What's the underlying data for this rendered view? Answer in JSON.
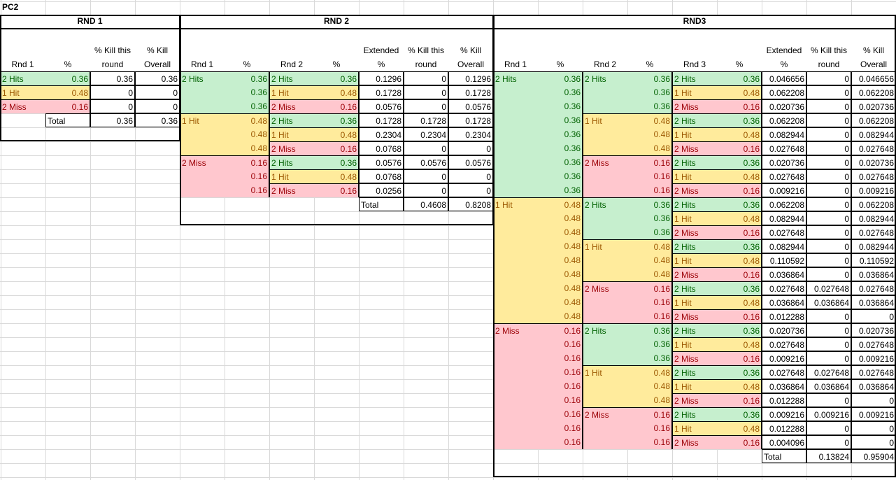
{
  "title": "PC2",
  "sections": [
    {
      "label": "RND 1",
      "headers": [
        "Rnd 1",
        "%",
        "% Kill this round",
        "% Kill Overall"
      ],
      "rows": [
        [
          "2 Hits",
          0.36,
          0.36,
          0.36
        ],
        [
          "1 Hit",
          0.48,
          0,
          0
        ],
        [
          "2 Miss",
          0.16,
          0,
          0
        ]
      ],
      "total": {
        "label": "Total",
        "values": [
          0.36,
          0.36
        ]
      }
    },
    {
      "label": "RND 2",
      "headers": [
        "Rnd 1",
        "%",
        "Rnd 2",
        "%",
        "Extended %",
        "% Kill this round",
        "% Kill Overall"
      ],
      "rows": [
        [
          "2 Hits",
          0.36,
          "2 Hits",
          0.36,
          0.1296,
          0,
          0.1296
        ],
        [
          null,
          0.36,
          "1 Hit",
          0.48,
          0.1728,
          0,
          0.1728
        ],
        [
          null,
          0.36,
          "2 Miss",
          0.16,
          0.0576,
          0,
          0.0576
        ],
        [
          "1 Hit",
          0.48,
          "2 Hits",
          0.36,
          0.1728,
          0.1728,
          0.1728
        ],
        [
          null,
          0.48,
          "1 Hit",
          0.48,
          0.2304,
          0.2304,
          0.2304
        ],
        [
          null,
          0.48,
          "2 Miss",
          0.16,
          0.0768,
          0,
          0
        ],
        [
          "2 Miss",
          0.16,
          "2 Hits",
          0.36,
          0.0576,
          0.0576,
          0.0576
        ],
        [
          null,
          0.16,
          "1 Hit",
          0.48,
          0.0768,
          0,
          0
        ],
        [
          null,
          0.16,
          "2 Miss",
          0.16,
          0.0256,
          0,
          0
        ]
      ],
      "total": {
        "label": "Total",
        "values": [
          0.4608,
          0.8208
        ]
      }
    },
    {
      "label": "RND3",
      "headers": [
        "Rnd 1",
        "%",
        "Rnd 2",
        "%",
        "Rnd 3",
        "%",
        "Extended %",
        "% Kill this round",
        "% Kill Overall"
      ],
      "rows": [
        [
          "2 Hits",
          0.36,
          "2 Hits",
          0.36,
          "2 Hits",
          0.36,
          0.046656,
          0,
          0.046656
        ],
        [
          null,
          0.36,
          null,
          0.36,
          "1 Hit",
          0.48,
          0.062208,
          0,
          0.062208
        ],
        [
          null,
          0.36,
          null,
          0.36,
          "2 Miss",
          0.16,
          0.020736,
          0,
          0.020736
        ],
        [
          null,
          0.36,
          "1 Hit",
          0.48,
          "2 Hits",
          0.36,
          0.062208,
          0,
          0.062208
        ],
        [
          null,
          0.36,
          null,
          0.48,
          "1 Hit",
          0.48,
          0.082944,
          0,
          0.082944
        ],
        [
          null,
          0.36,
          null,
          0.48,
          "2 Miss",
          0.16,
          0.027648,
          0,
          0.027648
        ],
        [
          null,
          0.36,
          "2 Miss",
          0.16,
          "2 Hits",
          0.36,
          0.020736,
          0,
          0.020736
        ],
        [
          null,
          0.36,
          null,
          0.16,
          "1 Hit",
          0.48,
          0.027648,
          0,
          0.027648
        ],
        [
          null,
          0.36,
          null,
          0.16,
          "2 Miss",
          0.16,
          0.009216,
          0,
          0.009216
        ],
        [
          "1 Hit",
          0.48,
          "2 Hits",
          0.36,
          "2 Hits",
          0.36,
          0.062208,
          0,
          0.062208
        ],
        [
          null,
          0.48,
          null,
          0.36,
          "1 Hit",
          0.48,
          0.082944,
          0,
          0.082944
        ],
        [
          null,
          0.48,
          null,
          0.36,
          "2 Miss",
          0.16,
          0.027648,
          0,
          0.027648
        ],
        [
          null,
          0.48,
          "1 Hit",
          0.48,
          "2 Hits",
          0.36,
          0.082944,
          0,
          0.082944
        ],
        [
          null,
          0.48,
          null,
          0.48,
          "1 Hit",
          0.48,
          0.110592,
          0,
          0.110592
        ],
        [
          null,
          0.48,
          null,
          0.48,
          "2 Miss",
          0.16,
          0.036864,
          0,
          0.036864
        ],
        [
          null,
          0.48,
          "2 Miss",
          0.16,
          "2 Hits",
          0.36,
          0.027648,
          0.027648,
          0.027648
        ],
        [
          null,
          0.48,
          null,
          0.16,
          "1 Hit",
          0.48,
          0.036864,
          0.036864,
          0.036864
        ],
        [
          null,
          0.48,
          null,
          0.16,
          "2 Miss",
          0.16,
          0.012288,
          0,
          0
        ],
        [
          "2 Miss",
          0.16,
          "2 Hits",
          0.36,
          "2 Hits",
          0.36,
          0.020736,
          0,
          0.020736
        ],
        [
          null,
          0.16,
          null,
          0.36,
          "1 Hit",
          0.48,
          0.027648,
          0,
          0.027648
        ],
        [
          null,
          0.16,
          null,
          0.36,
          "2 Miss",
          0.16,
          0.009216,
          0,
          0.009216
        ],
        [
          null,
          0.16,
          "1 Hit",
          0.48,
          "2 Hits",
          0.36,
          0.027648,
          0.027648,
          0.027648
        ],
        [
          null,
          0.16,
          null,
          0.48,
          "1 Hit",
          0.48,
          0.036864,
          0.036864,
          0.036864
        ],
        [
          null,
          0.16,
          null,
          0.48,
          "2 Miss",
          0.16,
          0.012288,
          0,
          0
        ],
        [
          null,
          0.16,
          "2 Miss",
          0.16,
          "2 Hits",
          0.36,
          0.009216,
          0.009216,
          0.009216
        ],
        [
          null,
          0.16,
          null,
          0.16,
          "1 Hit",
          0.48,
          0.012288,
          0,
          0
        ],
        [
          null,
          0.16,
          null,
          0.16,
          "2 Miss",
          0.16,
          0.004096,
          0,
          0
        ]
      ],
      "total": {
        "label": "Total",
        "values": [
          0.13824,
          0.95904
        ]
      }
    }
  ]
}
